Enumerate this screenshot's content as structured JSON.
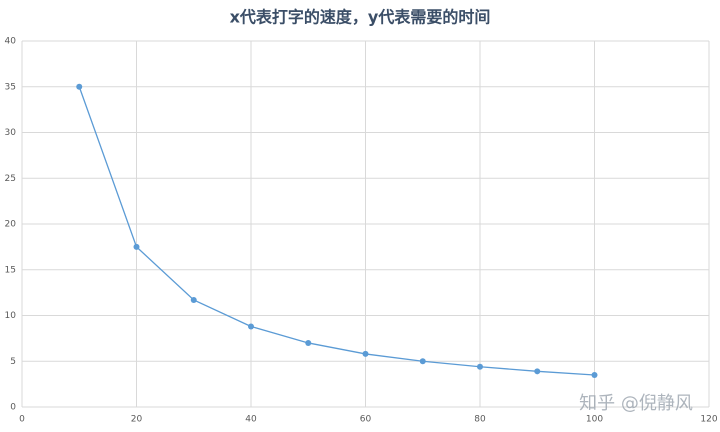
{
  "chart_data": {
    "type": "line",
    "title": "x代表打字的速度，y代表需要的时间",
    "x": [
      10,
      20,
      30,
      40,
      50,
      60,
      70,
      80,
      90,
      100
    ],
    "series": [
      {
        "color": "#5b9bd5",
        "values": [
          35,
          17.5,
          11.7,
          8.8,
          7,
          5.8,
          5,
          4.4,
          3.9,
          3.5
        ]
      }
    ],
    "xlim": [
      0,
      120
    ],
    "xticks": [
      0,
      20,
      40,
      60,
      80,
      100,
      120
    ],
    "ylim": [
      0,
      40
    ],
    "yticks": [
      0,
      5,
      10,
      15,
      20,
      25,
      30,
      35,
      40
    ],
    "grid": true,
    "watermark": "知乎 @倪静风"
  }
}
